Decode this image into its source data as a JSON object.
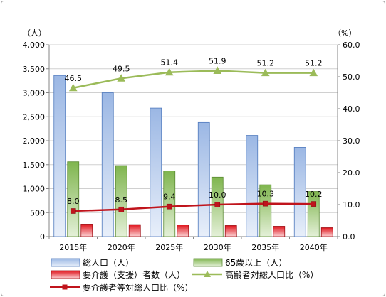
{
  "chart_data": {
    "type": "bar",
    "categories": [
      "2015年",
      "2020年",
      "2025年",
      "2030年",
      "2035年",
      "2040年"
    ],
    "y_left": {
      "unit": "（人）",
      "ylim": [
        0,
        4000
      ],
      "ticks": [
        "0",
        "500",
        "1,000",
        "1,500",
        "2,000",
        "2,500",
        "3,000",
        "3,500",
        "4,000"
      ]
    },
    "y_right": {
      "unit": "（%）",
      "ylim": [
        0,
        60
      ],
      "ticks": [
        "0.0",
        "10.0",
        "20.0",
        "30.0",
        "40.0",
        "50.0",
        "60.0"
      ]
    },
    "grid": true,
    "legend_position": "bottom",
    "series": [
      {
        "name": "総人口（人）",
        "kind": "bar",
        "axis": "left",
        "color": "#6f97d6",
        "values": [
          3360,
          3000,
          2680,
          2380,
          2110,
          1860
        ]
      },
      {
        "name": "65歳以上（人）",
        "kind": "bar",
        "axis": "left",
        "color": "#77b24a",
        "values": [
          1560,
          1480,
          1370,
          1240,
          1080,
          940
        ]
      },
      {
        "name": "要介護（支援）者数（人）",
        "kind": "bar",
        "axis": "left",
        "color": "#e0141c",
        "values": [
          260,
          250,
          245,
          230,
          215,
          185
        ]
      },
      {
        "name": "高齢者対総人口比（%）",
        "kind": "line",
        "axis": "right",
        "color": "#9bbb59",
        "marker": "triangle",
        "values": [
          46.5,
          49.5,
          51.4,
          51.9,
          51.2,
          51.2
        ],
        "labels": [
          "46.5",
          "49.5",
          "51.4",
          "51.9",
          "51.2",
          "51.2"
        ]
      },
      {
        "name": "要介護者等対総人口比（%）",
        "kind": "line",
        "axis": "right",
        "color": "#c0141c",
        "marker": "square",
        "values": [
          8.0,
          8.5,
          9.4,
          10.0,
          10.3,
          10.2
        ],
        "labels": [
          "8.0",
          "8.5",
          "9.4",
          "10.0",
          "10.3",
          "10.2"
        ]
      }
    ]
  }
}
